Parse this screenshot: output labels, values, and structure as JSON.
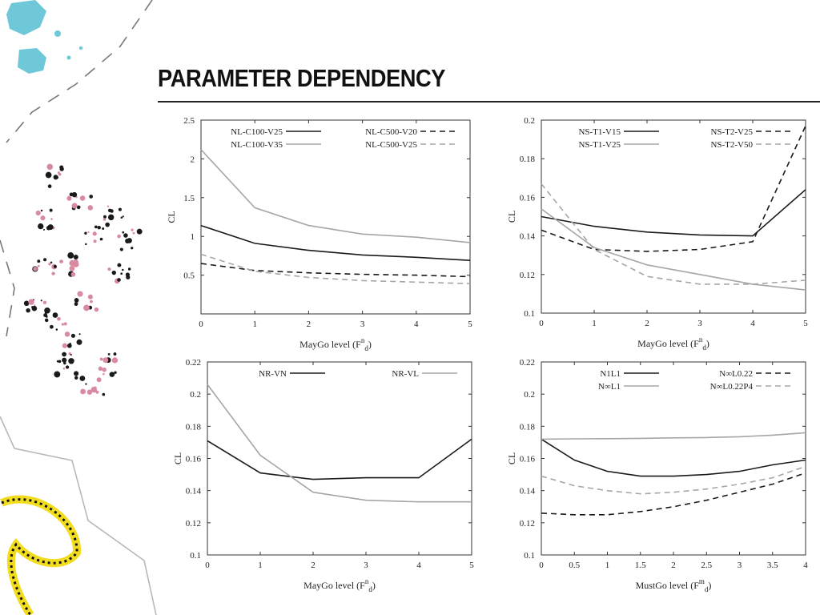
{
  "slide": {
    "title": "PARAMETER DEPENDENCY"
  },
  "colors": {
    "dark": "#1a1a1a",
    "gray": "#a6a6a6",
    "cyan": "#6fc8d8",
    "yellow": "#f2dc1e"
  },
  "chart_data": [
    {
      "type": "line",
      "title": "",
      "xlabel": "MayGo level (F",
      "xlabel_sup": "n",
      "xlabel_sub": "d",
      "xlabel_close": ")",
      "ylabel": "CL",
      "xlim": [
        0,
        5
      ],
      "ylim": [
        0,
        2.5
      ],
      "xticks": [
        "0",
        "1",
        "2",
        "3",
        "4",
        "5"
      ],
      "yticks": [
        "0.5",
        "1",
        "1.5",
        "2",
        "2.5"
      ],
      "yticks_val": [
        0.5,
        1,
        1.5,
        2,
        2.5
      ],
      "x": [
        0,
        1,
        2,
        3,
        4,
        5
      ],
      "series": [
        {
          "name": "NL-C100-V25",
          "color": "dark",
          "dash": false,
          "values": [
            1.14,
            0.91,
            0.82,
            0.76,
            0.73,
            0.69
          ]
        },
        {
          "name": "NL-C500-V20",
          "color": "dark",
          "dash": true,
          "values": [
            0.65,
            0.56,
            0.53,
            0.51,
            0.5,
            0.48
          ]
        },
        {
          "name": "NL-C100-V35",
          "color": "gray",
          "dash": false,
          "values": [
            2.12,
            1.37,
            1.14,
            1.03,
            0.99,
            0.92
          ]
        },
        {
          "name": "NL-C500-V25",
          "color": "gray",
          "dash": true,
          "values": [
            0.77,
            0.55,
            0.47,
            0.43,
            0.41,
            0.39
          ]
        }
      ],
      "legend": {
        "placement": "top",
        "columns": 2
      }
    },
    {
      "type": "line",
      "title": "",
      "xlabel": "MayGo level (F",
      "xlabel_sup": "n",
      "xlabel_sub": "d",
      "xlabel_close": ")",
      "ylabel": "CL",
      "xlim": [
        0,
        5
      ],
      "ylim": [
        0.1,
        0.2
      ],
      "xticks": [
        "0",
        "1",
        "2",
        "3",
        "4",
        "5"
      ],
      "yticks": [
        "0.1",
        "0.12",
        "0.14",
        "0.16",
        "0.18",
        "0.2"
      ],
      "yticks_val": [
        0.1,
        0.12,
        0.14,
        0.16,
        0.18,
        0.2
      ],
      "x": [
        0,
        1,
        2,
        3,
        4,
        5
      ],
      "series": [
        {
          "name": "NS-T1-V15",
          "color": "dark",
          "dash": false,
          "values": [
            0.15,
            0.145,
            0.142,
            0.1405,
            0.14,
            0.164
          ]
        },
        {
          "name": "NS-T2-V25",
          "color": "dark",
          "dash": true,
          "values": [
            0.143,
            0.133,
            0.132,
            0.133,
            0.137,
            0.197
          ]
        },
        {
          "name": "NS-T1-V25",
          "color": "gray",
          "dash": false,
          "values": [
            0.154,
            0.134,
            0.125,
            0.12,
            0.115,
            0.112
          ]
        },
        {
          "name": "NS-T2-V50",
          "color": "gray",
          "dash": true,
          "values": [
            0.167,
            0.133,
            0.119,
            0.115,
            0.115,
            0.117
          ]
        }
      ],
      "legend": {
        "placement": "top",
        "columns": 2
      }
    },
    {
      "type": "line",
      "title": "",
      "xlabel": "MayGo level (F",
      "xlabel_sup": "n",
      "xlabel_sub": "d",
      "xlabel_close": ")",
      "ylabel": "CL",
      "xlim": [
        0,
        5
      ],
      "ylim": [
        0.1,
        0.22
      ],
      "xticks": [
        "0",
        "1",
        "2",
        "3",
        "4",
        "5"
      ],
      "yticks": [
        "0.1",
        "0.12",
        "0.14",
        "0.16",
        "0.18",
        "0.2",
        "0.22"
      ],
      "yticks_val": [
        0.1,
        0.12,
        0.14,
        0.16,
        0.18,
        0.2,
        0.22
      ],
      "x": [
        0,
        1,
        2,
        3,
        4,
        5
      ],
      "series": [
        {
          "name": "NR-VN",
          "color": "dark",
          "dash": false,
          "values": [
            0.171,
            0.151,
            0.147,
            0.148,
            0.148,
            0.172
          ]
        },
        {
          "name": "NR-VL",
          "color": "gray",
          "dash": false,
          "values": [
            0.206,
            0.162,
            0.139,
            0.134,
            0.133,
            0.133
          ]
        }
      ],
      "legend": {
        "placement": "top",
        "columns": 2
      }
    },
    {
      "type": "line",
      "title": "",
      "xlabel": "MustGo level (F",
      "xlabel_sup": "m",
      "xlabel_sub": "d",
      "xlabel_close": ")",
      "ylabel": "CL",
      "xlim": [
        0,
        4
      ],
      "ylim": [
        0.1,
        0.22
      ],
      "xticks": [
        "0",
        "0.5",
        "1",
        "1.5",
        "2",
        "2.5",
        "3",
        "3.5",
        "4"
      ],
      "yticks": [
        "0.1",
        "0.12",
        "0.14",
        "0.16",
        "0.18",
        "0.2",
        "0.22"
      ],
      "yticks_val": [
        0.1,
        0.12,
        0.14,
        0.16,
        0.18,
        0.2,
        0.22
      ],
      "x": [
        0,
        0.5,
        1,
        1.5,
        2,
        2.5,
        3,
        3.5,
        4
      ],
      "series": [
        {
          "name": "N1L1",
          "color": "dark",
          "dash": false,
          "values": [
            0.172,
            0.159,
            0.152,
            0.149,
            0.149,
            0.15,
            0.152,
            0.156,
            0.159
          ]
        },
        {
          "name": "N∞L0.22",
          "color": "dark",
          "dash": true,
          "values": [
            0.126,
            0.125,
            0.125,
            0.127,
            0.13,
            0.134,
            0.139,
            0.144,
            0.151
          ]
        },
        {
          "name": "N∞L1",
          "color": "gray",
          "dash": false,
          "values": [
            0.172,
            0.1722,
            0.1723,
            0.1725,
            0.1728,
            0.173,
            0.1735,
            0.1745,
            0.176
          ]
        },
        {
          "name": "N∞L0.22P4",
          "color": "gray",
          "dash": true,
          "values": [
            0.149,
            0.143,
            0.14,
            0.138,
            0.139,
            0.141,
            0.144,
            0.148,
            0.155
          ]
        }
      ],
      "legend": {
        "placement": "top",
        "columns": 2
      }
    }
  ]
}
